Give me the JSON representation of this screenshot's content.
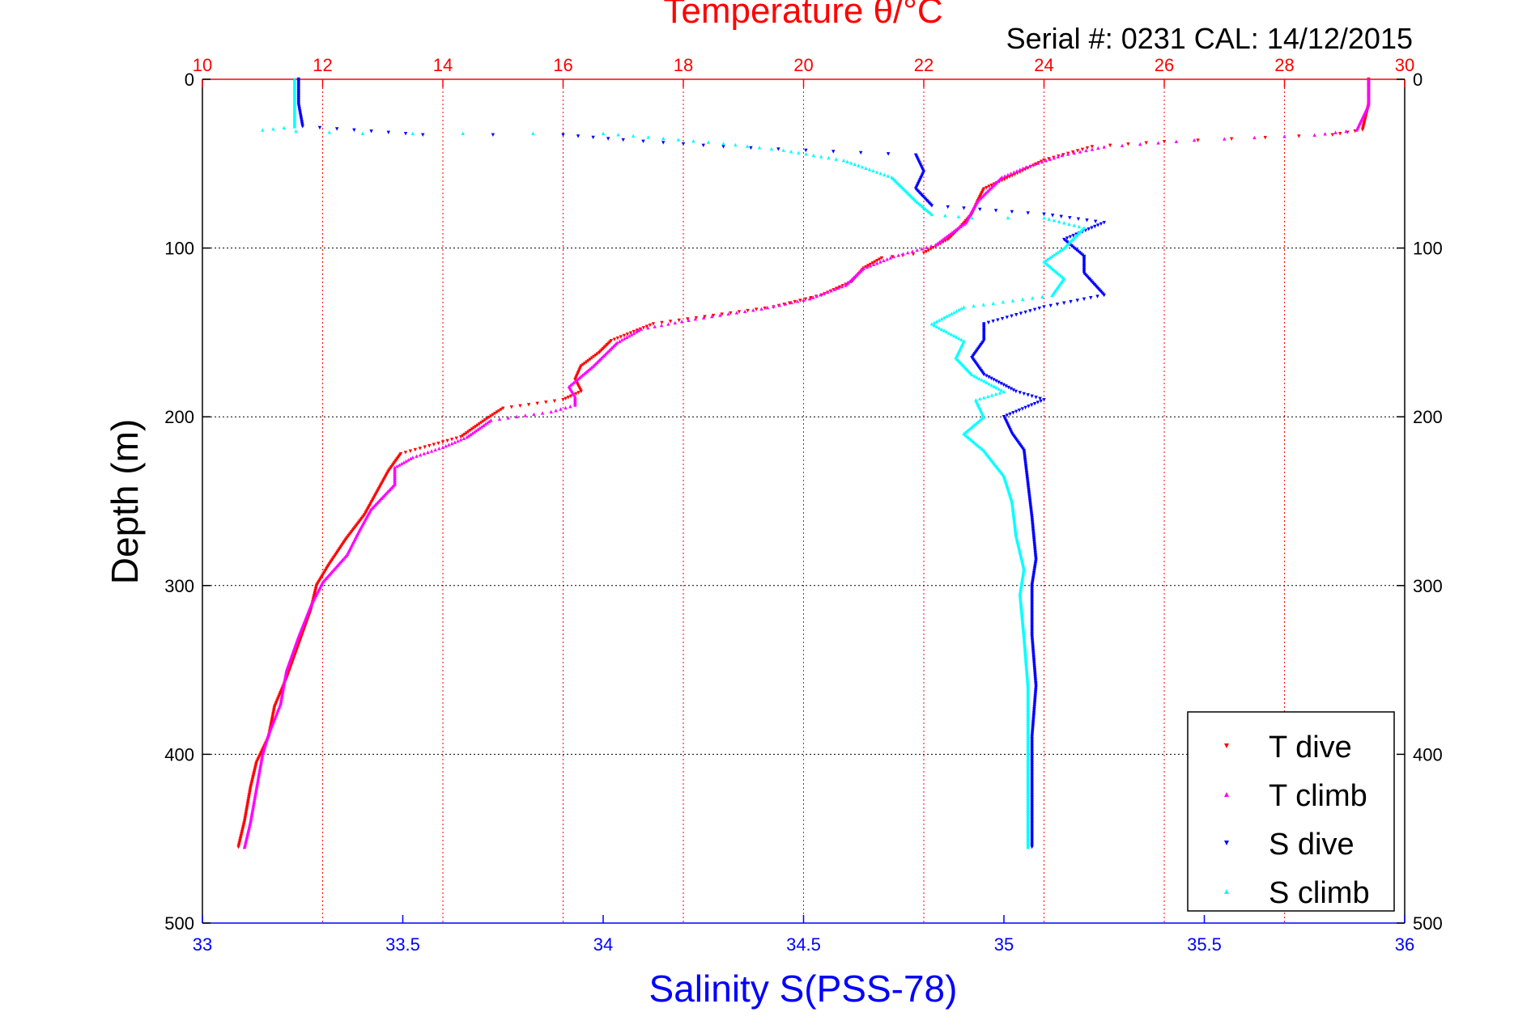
{
  "chart_data": {
    "type": "scatter",
    "title": "Temperature θ/°C",
    "subtitle": "Serial #: 0231  CAL: 14/12/2015",
    "xlabel": "Salinity S(PSS-78)",
    "ylabel": "Depth (m)",
    "temperature_axis": {
      "range": [
        10,
        30
      ],
      "ticks": [
        "10",
        "12",
        "14",
        "16",
        "18",
        "20",
        "22",
        "24",
        "26",
        "28",
        "30"
      ]
    },
    "salinity_axis": {
      "range": [
        33,
        36
      ],
      "ticks": [
        "33",
        "33.5",
        "34",
        "34.5",
        "35",
        "35.5",
        "36"
      ]
    },
    "depth_axis": {
      "range": [
        0,
        500
      ],
      "reversed": true,
      "ticks": [
        "0",
        "100",
        "200",
        "300",
        "400",
        "500"
      ]
    },
    "grid": true,
    "legend_position": "bottom-right",
    "colors": {
      "t_dive": "#ff0000",
      "t_climb": "#ff00ff",
      "s_dive": "#0000ff",
      "s_climb": "#00ffff",
      "temperature_axis": "#ff0000",
      "salinity_axis": "#0000ff"
    },
    "series": [
      {
        "name": "T dive",
        "axis": "temperature",
        "marker": "triangle-down",
        "points": [
          [
            29.4,
            0
          ],
          [
            29.4,
            15
          ],
          [
            29.3,
            30
          ],
          [
            28.8,
            33
          ],
          [
            26.0,
            37
          ],
          [
            24.8,
            40
          ],
          [
            24.0,
            48
          ],
          [
            23.6,
            55
          ],
          [
            23.3,
            60
          ],
          [
            23.0,
            65
          ],
          [
            22.9,
            72
          ],
          [
            22.8,
            80
          ],
          [
            22.6,
            88
          ],
          [
            22.4,
            95
          ],
          [
            22.0,
            103
          ],
          [
            21.3,
            106
          ],
          [
            21.0,
            112
          ],
          [
            20.8,
            120
          ],
          [
            20.3,
            128
          ],
          [
            19.5,
            135
          ],
          [
            18.5,
            140
          ],
          [
            17.5,
            145
          ],
          [
            16.8,
            155
          ],
          [
            16.6,
            162
          ],
          [
            16.3,
            170
          ],
          [
            16.2,
            178
          ],
          [
            16.3,
            185
          ],
          [
            16.0,
            190
          ],
          [
            15.0,
            195
          ],
          [
            14.7,
            202
          ],
          [
            14.3,
            212
          ],
          [
            13.7,
            218
          ],
          [
            13.3,
            222
          ],
          [
            13.1,
            232
          ],
          [
            12.9,
            245
          ],
          [
            12.7,
            258
          ],
          [
            12.4,
            272
          ],
          [
            12.1,
            288
          ],
          [
            11.9,
            300
          ],
          [
            11.8,
            315
          ],
          [
            11.6,
            335
          ],
          [
            11.4,
            355
          ],
          [
            11.2,
            372
          ],
          [
            11.1,
            390
          ],
          [
            10.9,
            405
          ],
          [
            10.8,
            420
          ],
          [
            10.7,
            440
          ],
          [
            10.6,
            455
          ]
        ]
      },
      {
        "name": "T climb",
        "axis": "temperature",
        "marker": "triangle-up",
        "points": [
          [
            29.4,
            0
          ],
          [
            29.4,
            15
          ],
          [
            29.2,
            30
          ],
          [
            28.5,
            33
          ],
          [
            26.5,
            36
          ],
          [
            25.0,
            40
          ],
          [
            24.3,
            45
          ],
          [
            23.7,
            52
          ],
          [
            23.3,
            58
          ],
          [
            23.1,
            65
          ],
          [
            22.9,
            72
          ],
          [
            22.8,
            78
          ],
          [
            22.7,
            85
          ],
          [
            22.5,
            90
          ],
          [
            22.2,
            98
          ],
          [
            21.5,
            105
          ],
          [
            21.0,
            112
          ],
          [
            20.7,
            122
          ],
          [
            20.1,
            130
          ],
          [
            19.3,
            136
          ],
          [
            18.2,
            142
          ],
          [
            17.3,
            148
          ],
          [
            16.9,
            156
          ],
          [
            16.7,
            163
          ],
          [
            16.5,
            170
          ],
          [
            16.3,
            176
          ],
          [
            16.1,
            182
          ],
          [
            16.2,
            188
          ],
          [
            16.2,
            193
          ],
          [
            15.8,
            197
          ],
          [
            14.8,
            202
          ],
          [
            14.4,
            212
          ],
          [
            14.0,
            218
          ],
          [
            13.5,
            224
          ],
          [
            13.2,
            230
          ],
          [
            13.2,
            240
          ],
          [
            12.8,
            255
          ],
          [
            12.6,
            268
          ],
          [
            12.4,
            282
          ],
          [
            12.0,
            298
          ],
          [
            11.8,
            312
          ],
          [
            11.6,
            330
          ],
          [
            11.4,
            350
          ],
          [
            11.3,
            370
          ],
          [
            11.1,
            388
          ],
          [
            11.0,
            400
          ],
          [
            10.9,
            420
          ],
          [
            10.8,
            440
          ],
          [
            10.7,
            455
          ]
        ]
      },
      {
        "name": "S dive",
        "axis": "salinity",
        "marker": "triangle-down",
        "points": [
          [
            33.24,
            0
          ],
          [
            33.24,
            15
          ],
          [
            33.25,
            28
          ],
          [
            33.55,
            33
          ],
          [
            33.9,
            33
          ],
          [
            34.05,
            36
          ],
          [
            34.3,
            40
          ],
          [
            34.78,
            45
          ],
          [
            34.8,
            55
          ],
          [
            34.78,
            65
          ],
          [
            34.82,
            75
          ],
          [
            35.1,
            80
          ],
          [
            35.25,
            85
          ],
          [
            35.15,
            95
          ],
          [
            35.2,
            105
          ],
          [
            35.2,
            115
          ],
          [
            35.25,
            128
          ],
          [
            35.1,
            135
          ],
          [
            34.95,
            145
          ],
          [
            34.95,
            155
          ],
          [
            34.92,
            165
          ],
          [
            34.95,
            175
          ],
          [
            35.03,
            185
          ],
          [
            35.1,
            190
          ],
          [
            35.0,
            200
          ],
          [
            35.02,
            210
          ],
          [
            35.05,
            220
          ],
          [
            35.06,
            240
          ],
          [
            35.07,
            260
          ],
          [
            35.08,
            285
          ],
          [
            35.07,
            300
          ],
          [
            35.07,
            330
          ],
          [
            35.08,
            360
          ],
          [
            35.07,
            390
          ],
          [
            35.07,
            420
          ],
          [
            35.07,
            445
          ],
          [
            35.07,
            455
          ]
        ]
      },
      {
        "name": "S climb",
        "axis": "salinity",
        "marker": "triangle-up",
        "points": [
          [
            33.23,
            0
          ],
          [
            33.23,
            15
          ],
          [
            33.23,
            28
          ],
          [
            33.15,
            30
          ],
          [
            33.4,
            32
          ],
          [
            33.65,
            32
          ],
          [
            34.0,
            32
          ],
          [
            34.3,
            38
          ],
          [
            34.45,
            42
          ],
          [
            34.6,
            48
          ],
          [
            34.72,
            58
          ],
          [
            34.78,
            72
          ],
          [
            34.82,
            80
          ],
          [
            34.92,
            82
          ],
          [
            35.1,
            82
          ],
          [
            35.2,
            88
          ],
          [
            35.15,
            100
          ],
          [
            35.1,
            108
          ],
          [
            35.15,
            118
          ],
          [
            35.12,
            128
          ],
          [
            34.9,
            135
          ],
          [
            34.82,
            145
          ],
          [
            34.9,
            155
          ],
          [
            34.88,
            165
          ],
          [
            34.92,
            175
          ],
          [
            35.0,
            185
          ],
          [
            34.93,
            190
          ],
          [
            34.95,
            200
          ],
          [
            34.9,
            210
          ],
          [
            34.95,
            220
          ],
          [
            35.0,
            235
          ],
          [
            35.02,
            250
          ],
          [
            35.03,
            270
          ],
          [
            35.05,
            290
          ],
          [
            35.04,
            305
          ],
          [
            35.05,
            330
          ],
          [
            35.06,
            360
          ],
          [
            35.06,
            390
          ],
          [
            35.06,
            420
          ],
          [
            35.06,
            445
          ],
          [
            35.06,
            455
          ]
        ]
      }
    ]
  }
}
